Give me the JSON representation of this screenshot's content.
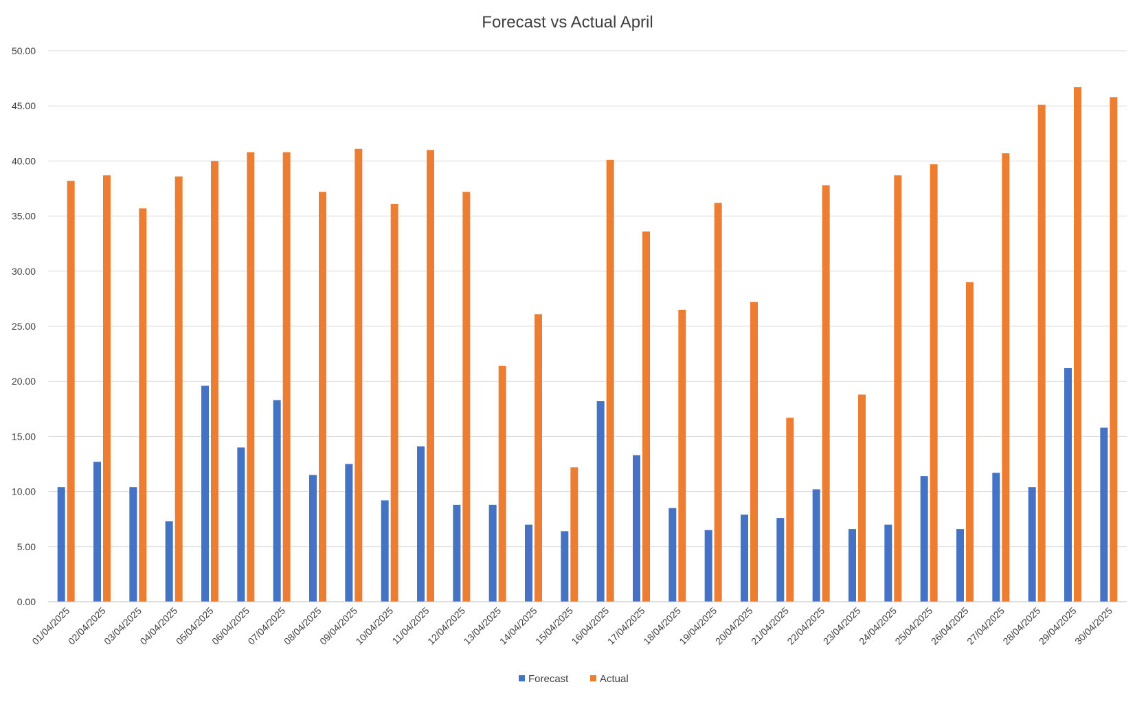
{
  "chart_data": {
    "type": "bar",
    "title": "Forecast vs Actual April",
    "xlabel": "",
    "ylabel": "",
    "ylim": [
      0,
      50
    ],
    "yticks": [
      "0.00",
      "5.00",
      "10.00",
      "15.00",
      "20.00",
      "25.00",
      "30.00",
      "35.00",
      "40.00",
      "45.00",
      "50.00"
    ],
    "grid": true,
    "legend_position": "bottom",
    "categories": [
      "01/04/2025",
      "02/04/2025",
      "03/04/2025",
      "04/04/2025",
      "05/04/2025",
      "06/04/2025",
      "07/04/2025",
      "08/04/2025",
      "09/04/2025",
      "10/04/2025",
      "11/04/2025",
      "12/04/2025",
      "13/04/2025",
      "14/04/2025",
      "15/04/2025",
      "16/04/2025",
      "17/04/2025",
      "18/04/2025",
      "19/04/2025",
      "20/04/2025",
      "21/04/2025",
      "22/04/2025",
      "23/04/2025",
      "24/04/2025",
      "25/04/2025",
      "26/04/2025",
      "27/04/2025",
      "28/04/2025",
      "29/04/2025",
      "30/04/2025"
    ],
    "series": [
      {
        "name": "Forecast",
        "color": "#4472c4",
        "values": [
          10.4,
          12.7,
          10.4,
          7.3,
          19.6,
          14.0,
          18.3,
          11.5,
          12.5,
          9.2,
          14.1,
          8.8,
          8.8,
          7.0,
          6.4,
          18.2,
          13.3,
          8.5,
          6.5,
          7.9,
          7.6,
          10.2,
          6.6,
          7.0,
          11.4,
          6.6,
          11.7,
          10.4,
          21.2,
          15.8
        ]
      },
      {
        "name": "Actual",
        "color": "#ed7d31",
        "values": [
          38.2,
          38.7,
          35.7,
          38.6,
          40.0,
          40.8,
          40.8,
          37.2,
          41.1,
          36.1,
          41.0,
          37.2,
          21.4,
          26.1,
          12.2,
          40.1,
          33.6,
          26.5,
          36.2,
          27.2,
          16.7,
          37.8,
          18.8,
          38.7,
          39.7,
          29.0,
          40.7,
          45.1,
          46.7,
          45.8
        ]
      }
    ]
  }
}
